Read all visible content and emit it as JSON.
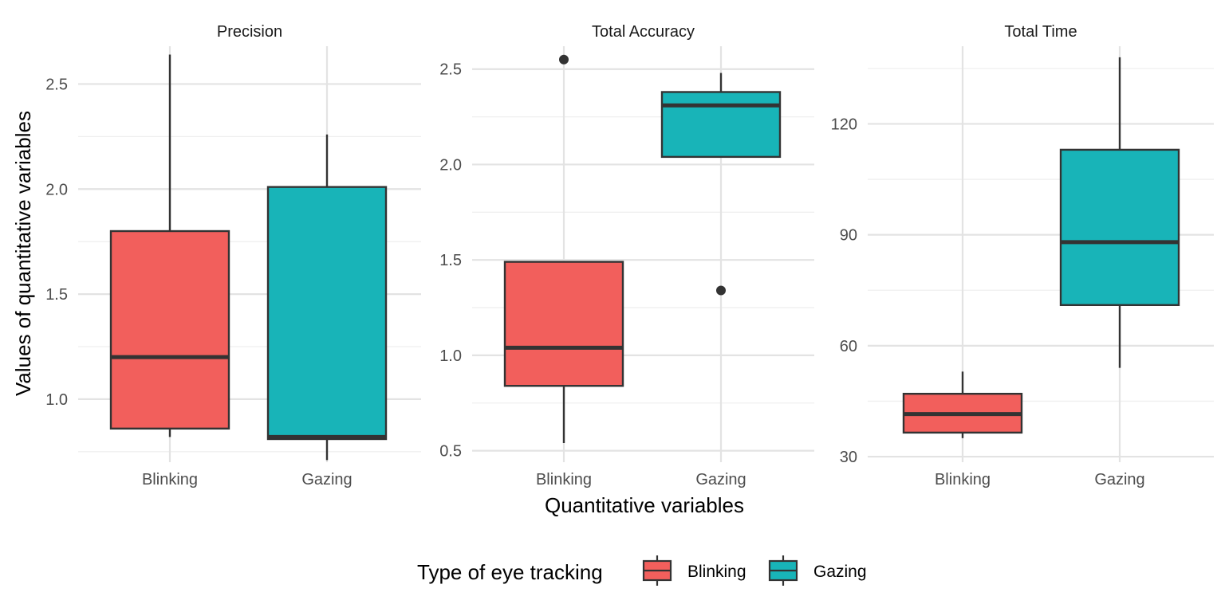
{
  "chart_data": {
    "type": "box",
    "xlabel": "Quantitative variables",
    "ylabel": "Values of quantitative variables",
    "categories": [
      "Blinking",
      "Gazing"
    ],
    "legend": {
      "title": "Type of eye tracking",
      "position": "bottom",
      "entries": [
        "Blinking",
        "Gazing"
      ]
    },
    "colors": {
      "Blinking": "#F25F5C",
      "Gazing": "#18B4B8"
    },
    "grid": true,
    "panels": [
      {
        "title": "Precision",
        "ylim": [
          0.7,
          2.68
        ],
        "yticks": [
          "1.0",
          "1.5",
          "2.0",
          "2.5"
        ],
        "boxes": [
          {
            "group": "Blinking",
            "lower_whisker": 0.82,
            "q1": 0.86,
            "median": 1.2,
            "q3": 1.8,
            "upper_whisker": 2.64,
            "outliers": []
          },
          {
            "group": "Gazing",
            "lower_whisker": 0.71,
            "q1": 0.81,
            "median": 0.82,
            "q3": 2.01,
            "upper_whisker": 2.26,
            "outliers": []
          }
        ]
      },
      {
        "title": "Total Accuracy",
        "ylim": [
          0.44,
          2.62
        ],
        "yticks": [
          "0.5",
          "1.0",
          "1.5",
          "2.0",
          "2.5"
        ],
        "boxes": [
          {
            "group": "Blinking",
            "lower_whisker": 0.54,
            "q1": 0.84,
            "median": 1.04,
            "q3": 1.49,
            "upper_whisker": 1.49,
            "outliers": [
              2.55
            ]
          },
          {
            "group": "Gazing",
            "lower_whisker": 2.04,
            "q1": 2.04,
            "median": 2.31,
            "q3": 2.38,
            "upper_whisker": 2.48,
            "outliers": [
              1.34
            ]
          }
        ]
      },
      {
        "title": "Total Time",
        "ylim": [
          28.5,
          141
        ],
        "yticks": [
          "30",
          "60",
          "90",
          "120"
        ],
        "boxes": [
          {
            "group": "Blinking",
            "lower_whisker": 35,
            "q1": 36.5,
            "median": 41.5,
            "q3": 47,
            "upper_whisker": 53,
            "outliers": []
          },
          {
            "group": "Gazing",
            "lower_whisker": 54,
            "q1": 71,
            "median": 88,
            "q3": 113,
            "upper_whisker": 138,
            "outliers": []
          }
        ]
      }
    ]
  }
}
